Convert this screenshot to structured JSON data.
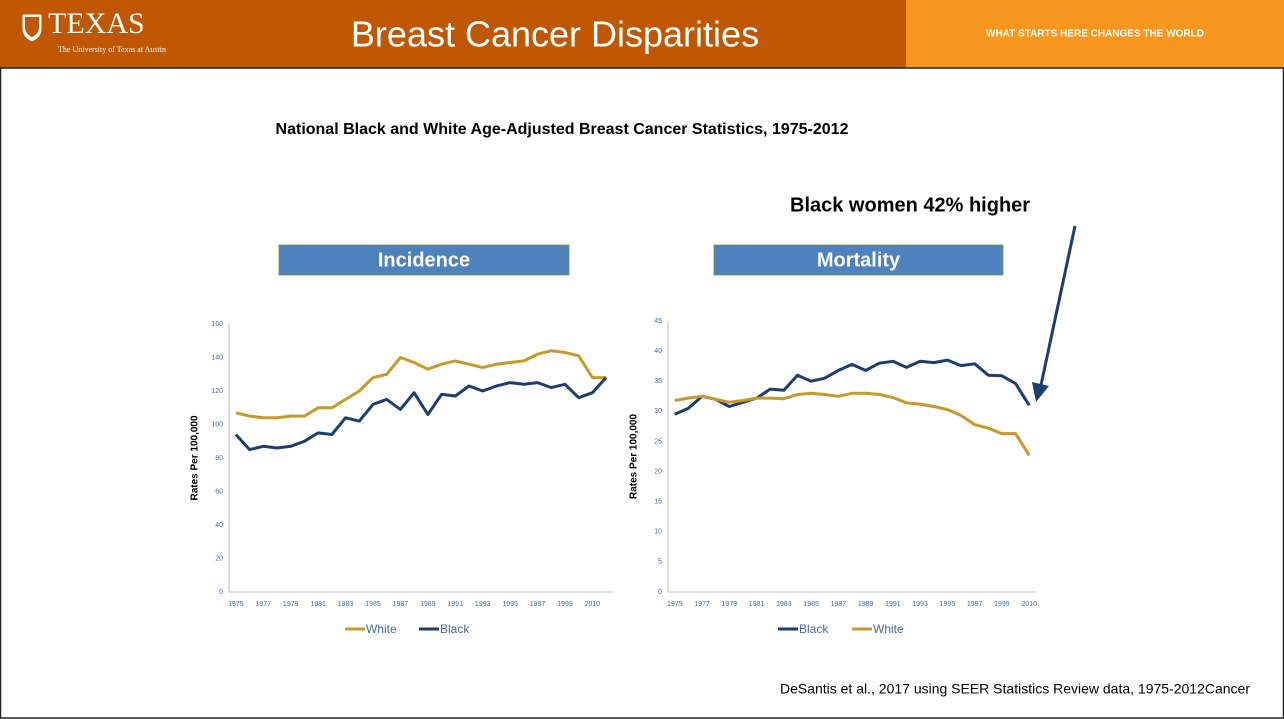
{
  "header": {
    "logo": "TEXAS",
    "logo_sub": "The University of Texas at Austin",
    "title": "Breast Cancer  Disparities",
    "tagline": "WHAT STARTS HERE CHANGES THE WORLD"
  },
  "subtitle": "National Black and White Age-Adjusted  Breast Cancer Statistics, 1975-2012",
  "annotation": "Black women 42% higher",
  "citation": "DeSantis et al., 2017 using SEER Statistics Review data, 1975-2012Cancer",
  "chart_data": [
    {
      "type": "line",
      "title": "Incidence",
      "ylabel": "Rates Per 100,000",
      "categories": [
        "1975",
        null,
        "1977",
        null,
        "1979",
        null,
        "1981",
        null,
        "1983",
        null,
        "1985",
        null,
        "1987",
        null,
        "1989",
        null,
        "1991",
        null,
        "1993",
        null,
        "1995",
        null,
        "1997",
        null,
        "1999",
        null,
        "2010",
        null
      ],
      "series": [
        {
          "name": "White",
          "color": "#c49a2c",
          "values": [
            107,
            105,
            104,
            104,
            105,
            105,
            110,
            110,
            115,
            120,
            128,
            130,
            140,
            137,
            133,
            136,
            138,
            136,
            134,
            136,
            137,
            138,
            142,
            144,
            143,
            141,
            128,
            128
          ]
        },
        {
          "name": "Black",
          "color": "#1f3d6b",
          "values": [
            94,
            85,
            87,
            86,
            87,
            90,
            95,
            94,
            104,
            102,
            112,
            115,
            109,
            119,
            106,
            118,
            117,
            123,
            120,
            123,
            125,
            124,
            125,
            122,
            124,
            116,
            119,
            128
          ]
        }
      ],
      "ylim": [
        0,
        160
      ],
      "yticks": [
        0,
        20,
        40,
        60,
        80,
        100,
        120,
        140,
        160
      ],
      "grid": false
    },
    {
      "type": "line",
      "title": "Mortality",
      "ylabel": "Rates Per 100,000",
      "categories": [
        "1975",
        null,
        "1977",
        null,
        "1979",
        null,
        "1981",
        null,
        "1983",
        null,
        "1985",
        null,
        "1987",
        null,
        "1989",
        null,
        "1991",
        null,
        "1993",
        null,
        "1995",
        null,
        "1997",
        null,
        "1999",
        null,
        "2010"
      ],
      "series": [
        {
          "name": "Black",
          "color": "#1f3d6b",
          "values": [
            29.5,
            30.5,
            32.5,
            32,
            30.8,
            31.5,
            32.2,
            33.7,
            33.5,
            36,
            35,
            35.5,
            36.8,
            37.8,
            36.8,
            38,
            38.3,
            37.3,
            38.3,
            38.1,
            38.5,
            37.6,
            37.9,
            36,
            35.9,
            34.6,
            31
          ]
        },
        {
          "name": "White",
          "color": "#c49a2c",
          "values": [
            31.8,
            32.2,
            32.5,
            32,
            31.5,
            31.8,
            32.2,
            32.2,
            32.1,
            32.8,
            33,
            32.8,
            32.5,
            33,
            33,
            32.8,
            32.3,
            31.4,
            31.2,
            30.8,
            30.3,
            29.3,
            27.8,
            27.2,
            26.3,
            26.3,
            22.7
          ]
        }
      ],
      "ylim": [
        0,
        45
      ],
      "yticks": [
        0,
        5,
        10,
        15,
        20,
        25,
        30,
        35,
        40,
        45
      ],
      "grid": false
    }
  ]
}
